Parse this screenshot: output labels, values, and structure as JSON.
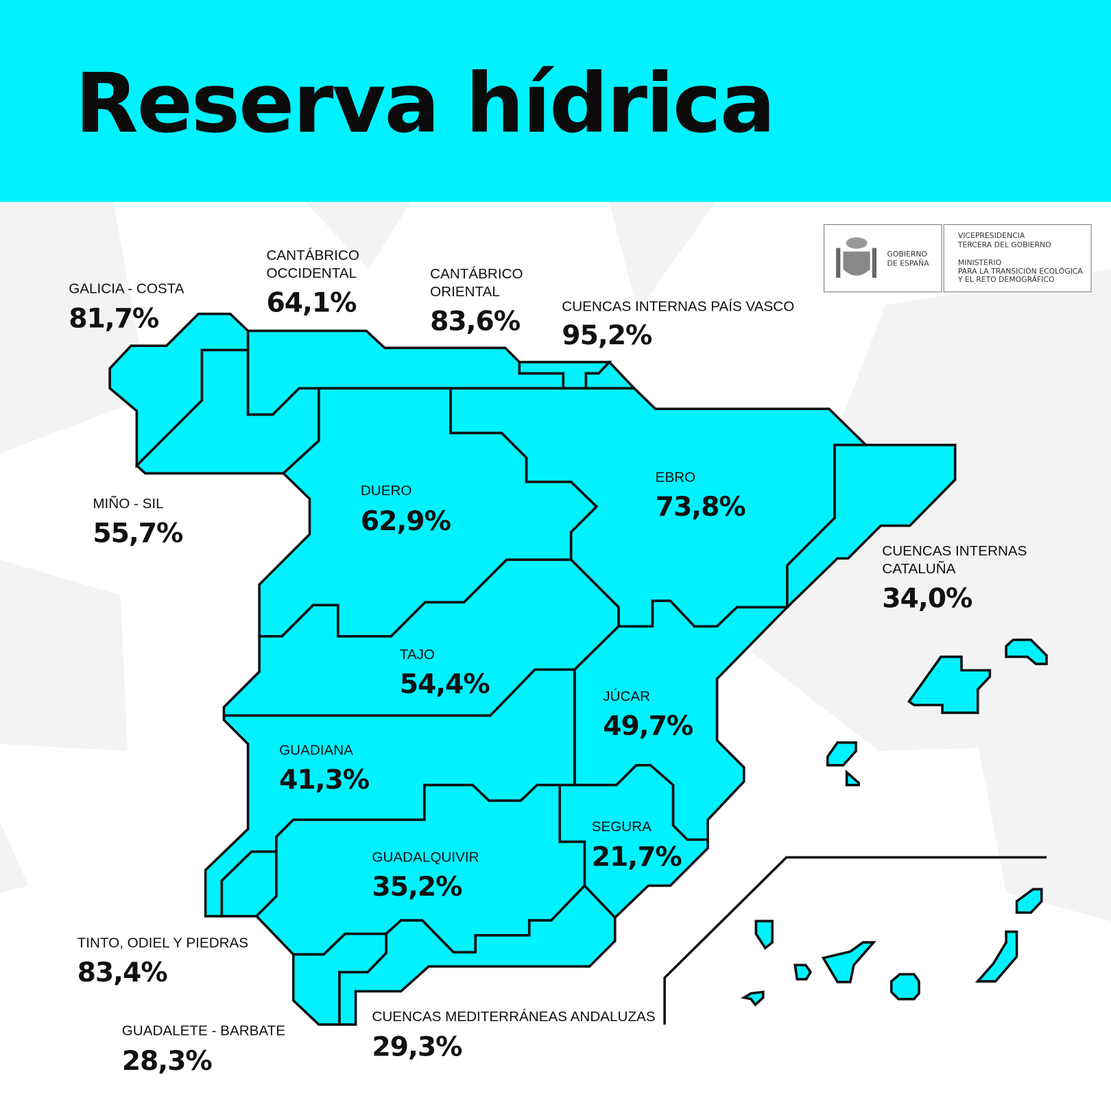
{
  "title": "Reserva hídrica",
  "colors": {
    "header": "#00f2ff",
    "region_fill": "#00f2ff",
    "border": "#111111"
  },
  "logo": {
    "left": [
      "GOBIERNO",
      "DE ESPAÑA"
    ],
    "right": [
      "VICEPRESIDENCIA",
      "TERCERA DEL GOBIERNO",
      "MINISTERIO",
      "PARA LA TRANSICIÓN ECOLÓGICA",
      "Y EL RETO DEMOGRÁFICO"
    ]
  },
  "regions": {
    "galicia_costa": {
      "name": [
        "GALICIA - COSTA"
      ],
      "value": "81,7%"
    },
    "cantabrico_occidental": {
      "name": [
        "CANTÁBRICO",
        "OCCIDENTAL"
      ],
      "value": "64,1%"
    },
    "cantabrico_oriental": {
      "name": [
        "CANTÁBRICO",
        "ORIENTAL"
      ],
      "value": "83,6%"
    },
    "pais_vasco": {
      "name": [
        "CUENCAS INTERNAS PAÍS VASCO"
      ],
      "value": "95,2%"
    },
    "mino_sil": {
      "name": [
        "MIÑO - SIL"
      ],
      "value": "55,7%"
    },
    "duero": {
      "name": [
        "DUERO"
      ],
      "value": "62,9%"
    },
    "ebro": {
      "name": [
        "EBRO"
      ],
      "value": "73,8%"
    },
    "cataluna": {
      "name": [
        "CUENCAS INTERNAS",
        "CATALUÑA"
      ],
      "value": "34,0%"
    },
    "tajo": {
      "name": [
        "TAJO"
      ],
      "value": "54,4%"
    },
    "jucar": {
      "name": [
        "JÚCAR"
      ],
      "value": "49,7%"
    },
    "guadiana": {
      "name": [
        "GUADIANA"
      ],
      "value": "41,3%"
    },
    "segura": {
      "name": [
        "SEGURA"
      ],
      "value": "21,7%"
    },
    "guadalquivir": {
      "name": [
        "GUADALQUIVIR"
      ],
      "value": "35,2%"
    },
    "tinto_odiel_piedras": {
      "name": [
        "TINTO, ODIEL Y PIEDRAS"
      ],
      "value": "83,4%"
    },
    "guadalete_barbate": {
      "name": [
        "GUADALETE - BARBATE"
      ],
      "value": "28,3%"
    },
    "mediterraneas_andaluzas": {
      "name": [
        "CUENCAS MEDITERRÁNEAS ANDALUZAS"
      ],
      "value": "29,3%"
    }
  }
}
